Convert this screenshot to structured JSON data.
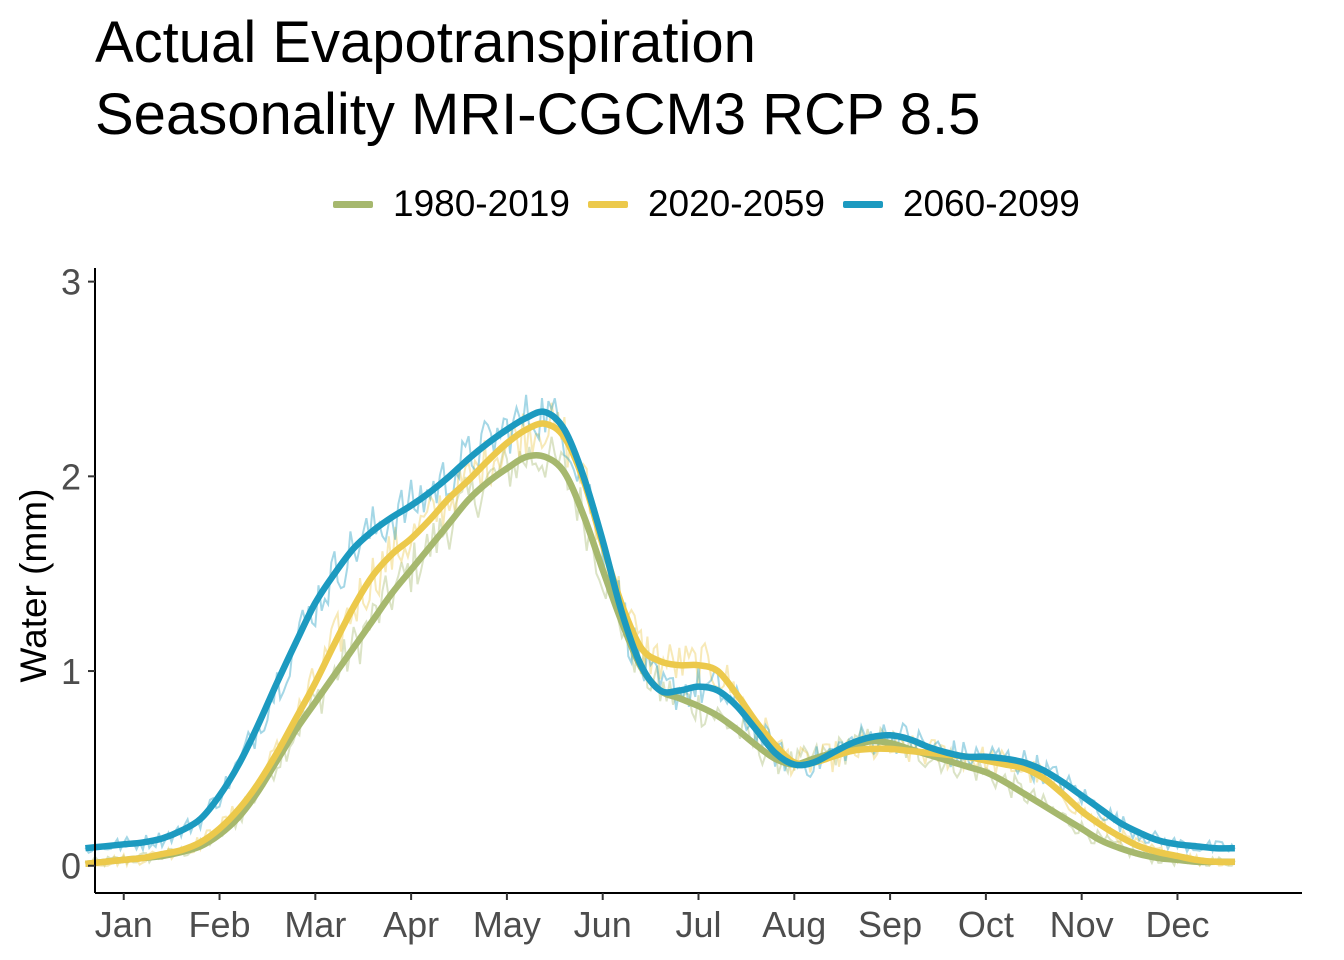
{
  "chart_data": {
    "type": "line",
    "title": "Actual Evapotranspiration",
    "subtitle": "Seasonality MRI-CGCM3 RCP 8.5",
    "xlabel": "",
    "ylabel": "Water (mm)",
    "ylim": [
      0,
      3
    ],
    "xlim": [
      0.7,
      13.3
    ],
    "yticks": [
      0,
      1,
      2,
      3
    ],
    "ytick_labels": [
      "0",
      "1",
      "2",
      "3"
    ],
    "categories": [
      "Jan",
      "Feb",
      "Mar",
      "Apr",
      "May",
      "Jun",
      "Jul",
      "Aug",
      "Sep",
      "Oct",
      "Nov",
      "Dec"
    ],
    "grid": false,
    "legend_position": "top",
    "x": [
      0.6,
      0.8,
      1.0,
      1.2,
      1.4,
      1.6,
      1.8,
      2.0,
      2.2,
      2.4,
      2.6,
      2.8,
      3.0,
      3.2,
      3.4,
      3.6,
      3.8,
      4.0,
      4.2,
      4.4,
      4.6,
      4.8,
      5.0,
      5.2,
      5.4,
      5.6,
      5.8,
      6.0,
      6.2,
      6.4,
      6.6,
      6.8,
      7.0,
      7.2,
      7.4,
      7.6,
      7.8,
      8.0,
      8.2,
      8.4,
      8.6,
      8.8,
      9.0,
      9.2,
      9.4,
      9.6,
      9.8,
      10.0,
      10.2,
      10.4,
      10.6,
      10.8,
      11.0,
      11.2,
      11.4,
      11.6,
      11.8,
      12.0,
      12.2,
      12.4,
      12.6
    ],
    "series": [
      {
        "name": "1980-2019",
        "color": "#a6b86e",
        "values": [
          0.01,
          0.02,
          0.03,
          0.04,
          0.05,
          0.07,
          0.1,
          0.16,
          0.25,
          0.38,
          0.54,
          0.7,
          0.84,
          0.98,
          1.12,
          1.26,
          1.4,
          1.52,
          1.64,
          1.76,
          1.88,
          1.97,
          2.04,
          2.1,
          2.1,
          2.02,
          1.8,
          1.52,
          1.25,
          1.02,
          0.9,
          0.86,
          0.82,
          0.77,
          0.7,
          0.62,
          0.55,
          0.52,
          0.55,
          0.58,
          0.61,
          0.64,
          0.63,
          0.6,
          0.57,
          0.54,
          0.51,
          0.48,
          0.43,
          0.37,
          0.31,
          0.25,
          0.19,
          0.13,
          0.09,
          0.06,
          0.04,
          0.03,
          0.02,
          0.02,
          0.02
        ]
      },
      {
        "name": "2020-2059",
        "color": "#ecc94b",
        "values": [
          0.01,
          0.02,
          0.03,
          0.04,
          0.06,
          0.08,
          0.12,
          0.19,
          0.29,
          0.42,
          0.58,
          0.76,
          0.94,
          1.14,
          1.33,
          1.49,
          1.6,
          1.68,
          1.78,
          1.89,
          1.98,
          2.08,
          2.17,
          2.24,
          2.27,
          2.2,
          1.98,
          1.65,
          1.34,
          1.12,
          1.05,
          1.03,
          1.03,
          1.0,
          0.88,
          0.74,
          0.62,
          0.53,
          0.53,
          0.56,
          0.59,
          0.6,
          0.6,
          0.59,
          0.58,
          0.57,
          0.56,
          0.54,
          0.52,
          0.5,
          0.45,
          0.37,
          0.28,
          0.21,
          0.15,
          0.1,
          0.07,
          0.05,
          0.03,
          0.02,
          0.02
        ]
      },
      {
        "name": "2060-2099",
        "color": "#1c9ac0",
        "values": [
          0.09,
          0.1,
          0.11,
          0.12,
          0.14,
          0.18,
          0.24,
          0.36,
          0.52,
          0.72,
          0.94,
          1.15,
          1.35,
          1.5,
          1.63,
          1.72,
          1.79,
          1.85,
          1.92,
          2.0,
          2.09,
          2.17,
          2.24,
          2.3,
          2.33,
          2.24,
          2.0,
          1.67,
          1.3,
          1.03,
          0.9,
          0.9,
          0.92,
          0.9,
          0.82,
          0.7,
          0.58,
          0.52,
          0.53,
          0.58,
          0.63,
          0.66,
          0.67,
          0.65,
          0.61,
          0.58,
          0.56,
          0.56,
          0.55,
          0.53,
          0.49,
          0.43,
          0.36,
          0.29,
          0.22,
          0.17,
          0.13,
          0.11,
          0.1,
          0.09,
          0.09
        ]
      }
    ]
  }
}
